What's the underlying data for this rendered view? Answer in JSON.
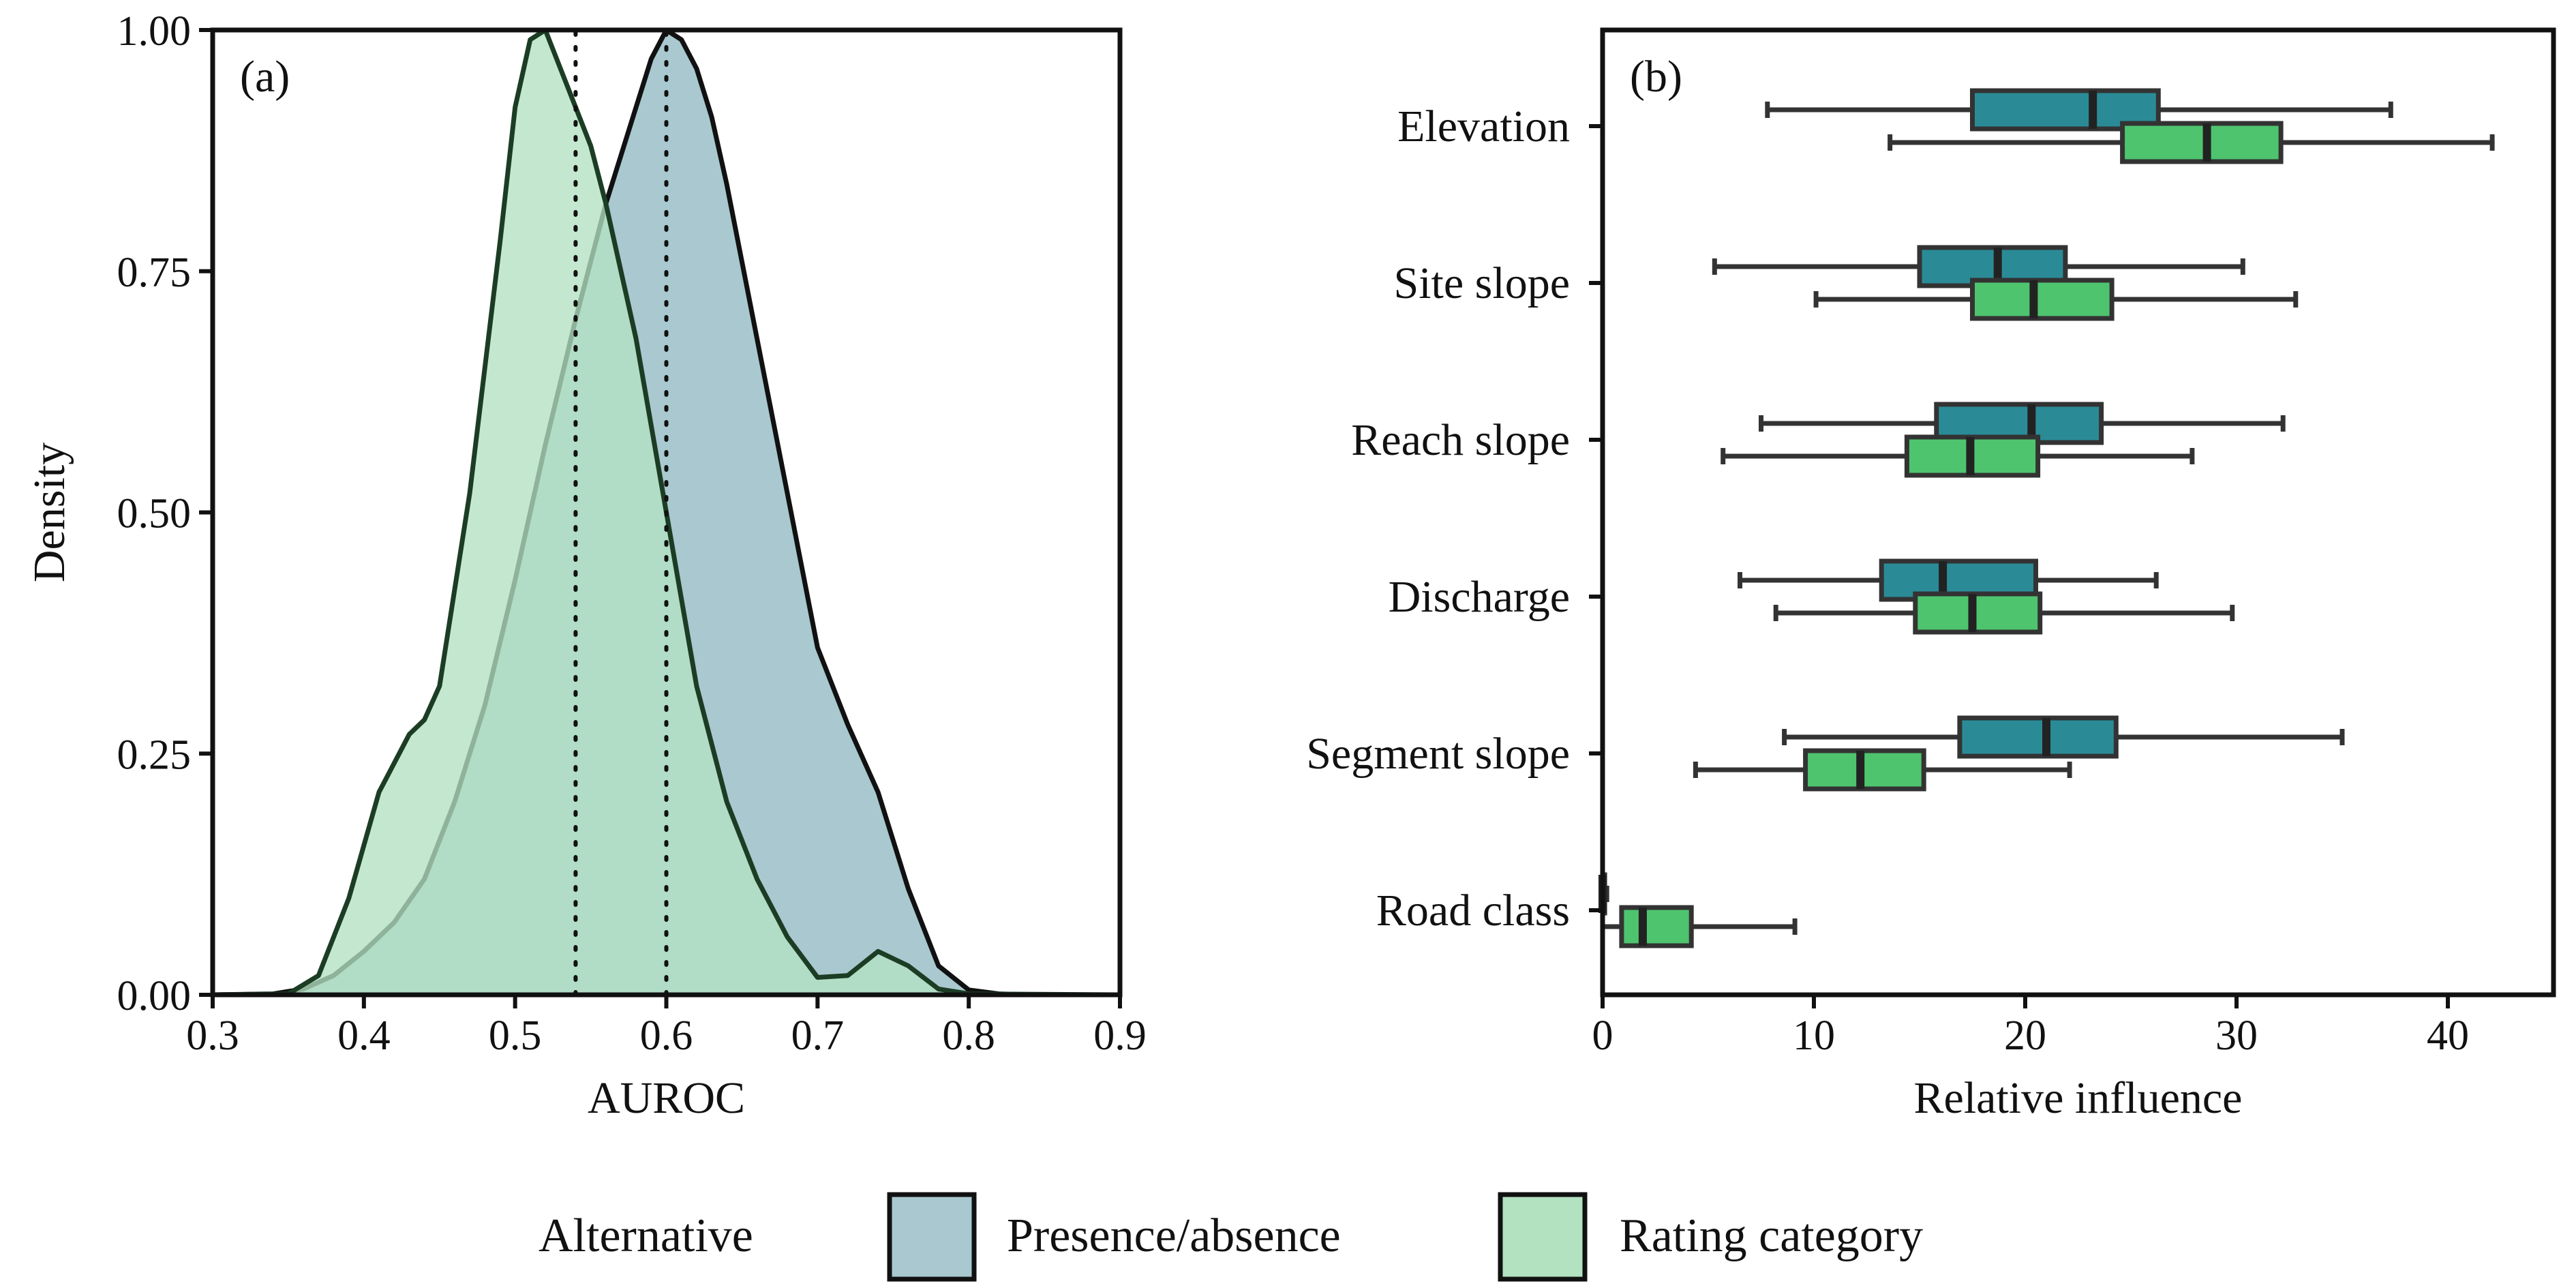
{
  "chart_data": [
    {
      "panel": "(a)",
      "type": "area",
      "xlabel": "AUROC",
      "ylabel": "Density",
      "xlim": [
        0.3,
        0.9
      ],
      "ylim": [
        0,
        1
      ],
      "xticks": [
        "0.3",
        "0.4",
        "0.5",
        "0.6",
        "0.7",
        "0.8",
        "0.9"
      ],
      "yticks": [
        "0.00",
        "0.25",
        "0.50",
        "0.75",
        "1.00"
      ],
      "grid": false,
      "series": [
        {
          "name": "Presence/absence",
          "color": "#a9c8cf",
          "median_line": 0.6,
          "x": [
            0.3,
            0.34,
            0.36,
            0.38,
            0.4,
            0.42,
            0.44,
            0.46,
            0.48,
            0.5,
            0.52,
            0.54,
            0.56,
            0.58,
            0.59,
            0.6,
            0.61,
            0.62,
            0.63,
            0.64,
            0.66,
            0.68,
            0.7,
            0.72,
            0.74,
            0.76,
            0.78,
            0.8,
            0.82,
            0.84,
            0.9
          ],
          "y": [
            0.0,
            0.001,
            0.006,
            0.02,
            0.045,
            0.075,
            0.12,
            0.2,
            0.3,
            0.43,
            0.57,
            0.7,
            0.82,
            0.92,
            0.97,
            1.0,
            0.99,
            0.96,
            0.91,
            0.84,
            0.68,
            0.52,
            0.36,
            0.28,
            0.21,
            0.11,
            0.03,
            0.005,
            0.001,
            0.0,
            0.0
          ]
        },
        {
          "name": "Rating category",
          "color": "#b3e2c1",
          "median_line": 0.54,
          "x": [
            0.3,
            0.35,
            0.37,
            0.39,
            0.41,
            0.43,
            0.44,
            0.45,
            0.47,
            0.49,
            0.5,
            0.51,
            0.52,
            0.53,
            0.54,
            0.55,
            0.56,
            0.58,
            0.6,
            0.62,
            0.64,
            0.66,
            0.68,
            0.7,
            0.72,
            0.74,
            0.76,
            0.78,
            0.8,
            0.9
          ],
          "y": [
            0.0,
            0.001,
            0.02,
            0.1,
            0.21,
            0.27,
            0.285,
            0.32,
            0.52,
            0.78,
            0.92,
            0.99,
            1.0,
            0.96,
            0.92,
            0.88,
            0.82,
            0.68,
            0.5,
            0.32,
            0.2,
            0.12,
            0.06,
            0.018,
            0.02,
            0.045,
            0.03,
            0.006,
            0.001,
            0.0
          ]
        }
      ]
    },
    {
      "panel": "(b)",
      "type": "boxplot",
      "xlabel": "Relative influence",
      "xlim": [
        0,
        45
      ],
      "xticks": [
        "0",
        "10",
        "20",
        "30",
        "40"
      ],
      "categories": [
        "Elevation",
        "Site slope",
        "Reach slope",
        "Discharge",
        "Segment slope",
        "Road class"
      ],
      "grid": false,
      "series": [
        {
          "name": "Presence/absence",
          "color": "#2a8b97",
          "boxes": [
            {
              "min": 7.8,
              "q1": 17.5,
              "median": 23.2,
              "q3": 26.3,
              "max": 37.3
            },
            {
              "min": 5.3,
              "q1": 15.0,
              "median": 18.7,
              "q3": 21.9,
              "max": 30.3
            },
            {
              "min": 7.5,
              "q1": 15.8,
              "median": 20.3,
              "q3": 23.6,
              "max": 32.2
            },
            {
              "min": 6.5,
              "q1": 13.2,
              "median": 16.1,
              "q3": 20.5,
              "max": 26.2
            },
            {
              "min": 8.6,
              "q1": 16.9,
              "median": 21.0,
              "q3": 24.3,
              "max": 35.0
            },
            {
              "min": 0.0,
              "q1": 0.0,
              "median": 0.0,
              "q3": 0.1,
              "max": 0.2
            }
          ]
        },
        {
          "name": "Rating category",
          "color": "#4ec46e",
          "boxes": [
            {
              "min": 13.6,
              "q1": 24.6,
              "median": 28.6,
              "q3": 32.1,
              "max": 42.1
            },
            {
              "min": 10.1,
              "q1": 17.5,
              "median": 20.4,
              "q3": 24.1,
              "max": 32.8
            },
            {
              "min": 5.7,
              "q1": 14.4,
              "median": 17.4,
              "q3": 20.6,
              "max": 27.9
            },
            {
              "min": 8.2,
              "q1": 14.8,
              "median": 17.5,
              "q3": 20.7,
              "max": 29.8
            },
            {
              "min": 4.4,
              "q1": 9.6,
              "median": 12.2,
              "q3": 15.2,
              "max": 22.1
            },
            {
              "min": 0.0,
              "q1": 0.9,
              "median": 1.9,
              "q3": 4.2,
              "max": 9.1
            }
          ]
        }
      ]
    }
  ],
  "legend": {
    "title": "Alternative",
    "items": [
      {
        "label": "Presence/absence",
        "color": "#a9c8cf"
      },
      {
        "label": "Rating category",
        "color": "#b3e2c1"
      }
    ]
  }
}
